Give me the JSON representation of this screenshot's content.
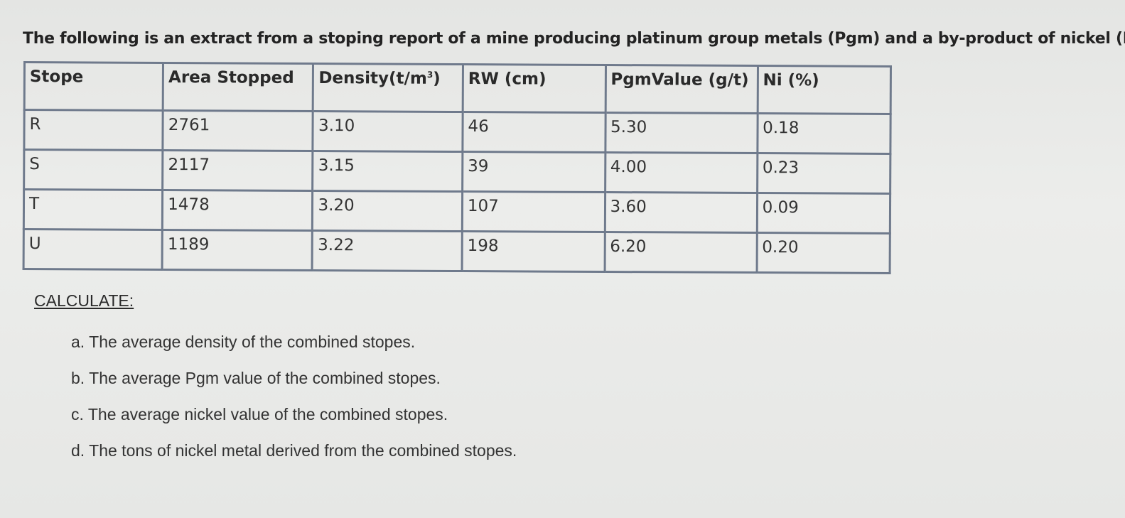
{
  "intro": "The following is an extract from a stoping report of a mine producing platinum group metals (Pgm) and a by-product of nickel (Ni).",
  "table": {
    "headers": {
      "stope": "Stope",
      "area": "Area Stopped",
      "density": "Density(t/m",
      "density_sup": "3",
      "density_close": ")",
      "rw": "RW (cm)",
      "pgm": "PgmValue (g/t)",
      "ni": "Ni (%)"
    },
    "rows": [
      {
        "stope": "R",
        "area": "2761",
        "density": "3.10",
        "rw": "46",
        "pgm": "5.30",
        "ni": "0.18"
      },
      {
        "stope": "S",
        "area": "2117",
        "density": "3.15",
        "rw": "39",
        "pgm": "4.00",
        "ni": "0.23"
      },
      {
        "stope": "T",
        "area": "1478",
        "density": "3.20",
        "rw": "107",
        "pgm": "3.60",
        "ni": "0.09"
      },
      {
        "stope": "U",
        "area": "1189",
        "density": "3.22",
        "rw": "198",
        "pgm": "6.20",
        "ni": "0.20"
      }
    ]
  },
  "calculate": {
    "heading": "CALCULATE:",
    "items": [
      "a. The average density of the combined stopes.",
      "b. The average Pgm value of the combined stopes.",
      "c. The average nickel value of the combined stopes.",
      "d. The tons of nickel metal derived from the combined stopes."
    ]
  }
}
